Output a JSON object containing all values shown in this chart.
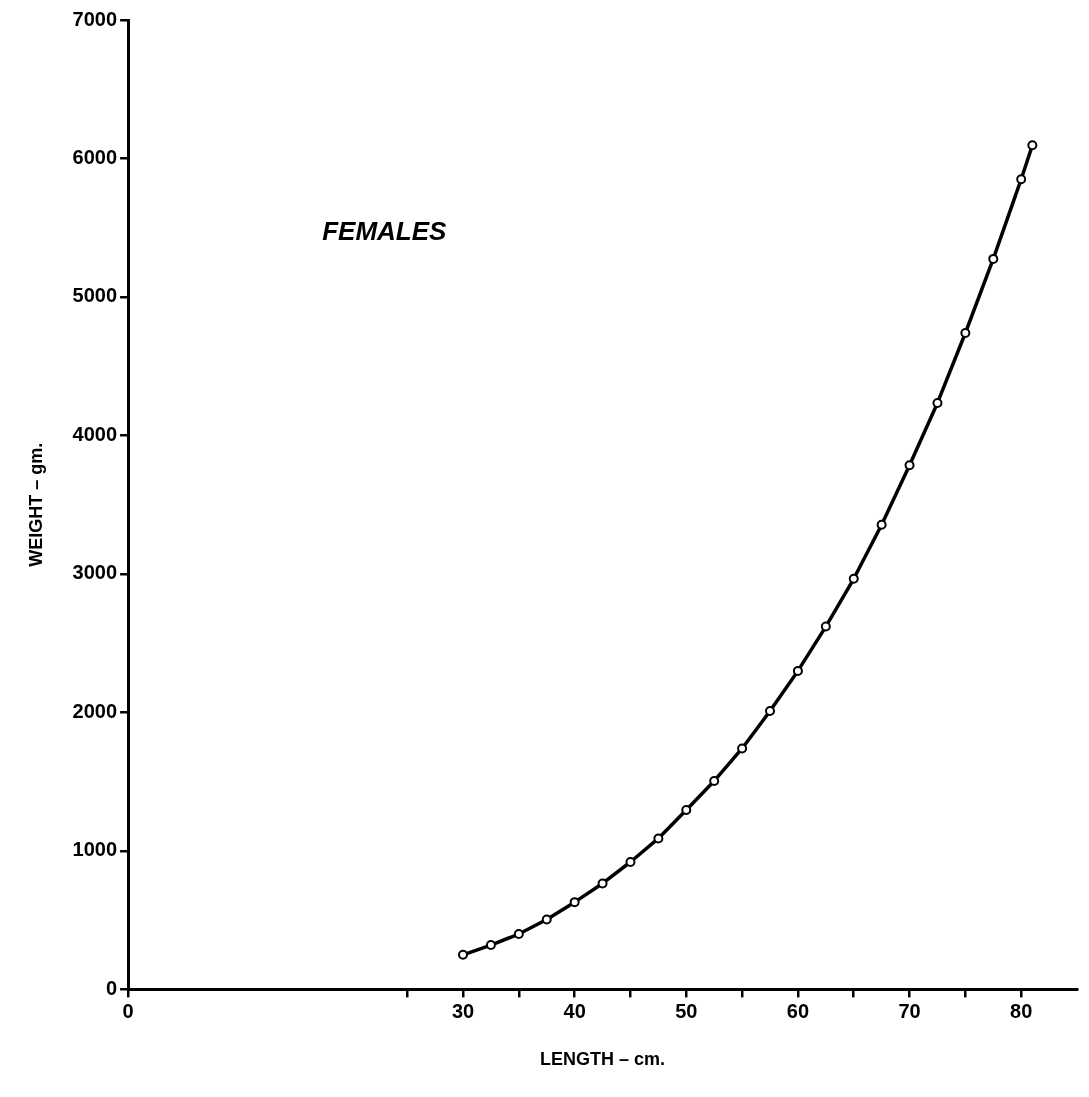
{
  "chart_data": {
    "type": "line",
    "xlabel": "LENGTH – cm.",
    "ylabel": "WEIGHT – gm.",
    "annotations": [
      "FEMALES"
    ],
    "x": [
      30,
      32.5,
      35,
      37.5,
      40,
      42.5,
      45,
      47.5,
      50,
      52.5,
      55,
      57.5,
      60,
      62.5,
      65,
      67.5,
      70,
      72.5,
      75,
      77.5,
      80,
      81
    ],
    "series": [
      {
        "color": "#000000",
        "values": [
          250,
          320,
          400,
          505,
          630,
          765,
          920,
          1090,
          1295,
          1505,
          1740,
          2010,
          2300,
          2620,
          2965,
          3355,
          3785,
          4235,
          4740,
          5275,
          5850,
          6095
        ]
      }
    ],
    "xlim": [
      0,
      85
    ],
    "xticks": [
      0,
      {
        "value": 25,
        "label": null
      },
      30,
      {
        "value": 35,
        "label": null
      },
      40,
      {
        "value": 45,
        "label": null
      },
      50,
      {
        "value": 55,
        "label": null
      },
      60,
      {
        "value": 65,
        "label": null
      },
      70,
      {
        "value": 75,
        "label": null
      },
      80
    ],
    "ylim": [
      0,
      7000
    ],
    "yticks": [
      0,
      1000,
      2000,
      3000,
      4000,
      5000,
      6000,
      7000
    ],
    "grid": false,
    "legend": false,
    "marker": "circle",
    "line_style": "solid"
  }
}
